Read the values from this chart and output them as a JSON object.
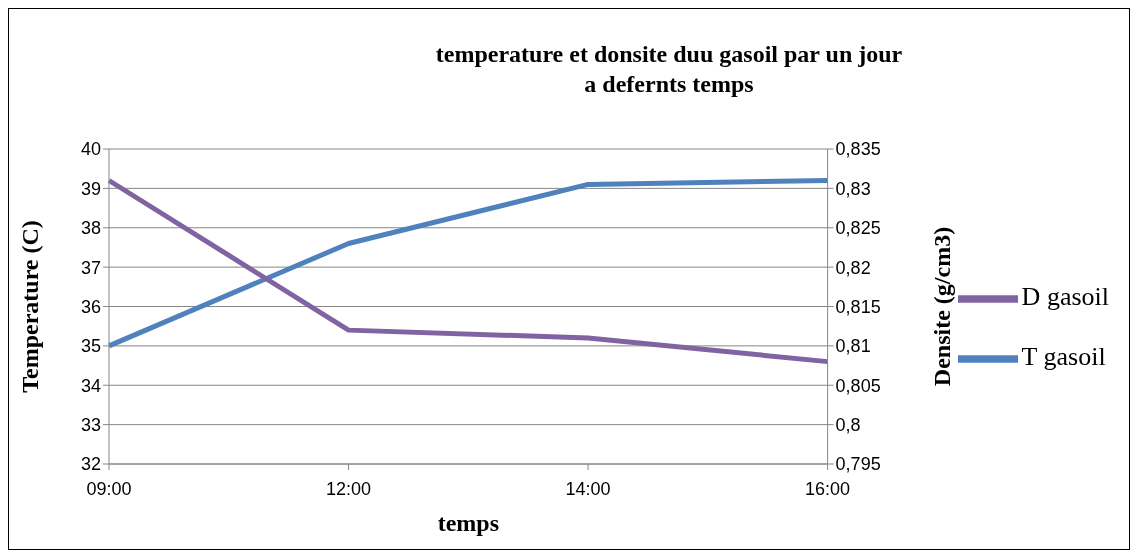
{
  "chart_data": {
    "type": "line",
    "title": "temperature et donsite duu gasoil par un jour\na defernts temps",
    "xlabel": "temps",
    "ylabel": "Temperature (C)",
    "y2label": "Densite (g/cm3)",
    "categories": [
      "09:00",
      "12:00",
      "14:00",
      "16:00"
    ],
    "series": [
      {
        "name": "T gasoil",
        "color": "#4f81bd",
        "values": [
          35,
          37.6,
          39.1,
          39.2
        ]
      },
      {
        "name": "D gasoil",
        "color": "#8064a2",
        "values": [
          0.831,
          0.812,
          0.811,
          0.808
        ],
        "axis": "y2"
      }
    ],
    "ylim": [
      32,
      40
    ],
    "yticks": [
      32,
      33,
      34,
      35,
      36,
      37,
      38,
      39,
      40
    ],
    "y2lim": [
      0.795,
      0.835
    ],
    "y2ticks": [
      {
        "value": 0.795,
        "label": "0,795"
      },
      {
        "value": 0.8,
        "label": "0,8"
      },
      {
        "value": 0.805,
        "label": "0,805"
      },
      {
        "value": 0.81,
        "label": "0,81"
      },
      {
        "value": 0.815,
        "label": "0,815"
      },
      {
        "value": 0.82,
        "label": "0,82"
      },
      {
        "value": 0.825,
        "label": "0,825"
      },
      {
        "value": 0.83,
        "label": "0,83"
      },
      {
        "value": 0.835,
        "label": "0,835"
      }
    ],
    "grid": "y",
    "legend": "right",
    "marker": "none",
    "line_style": "solid"
  }
}
